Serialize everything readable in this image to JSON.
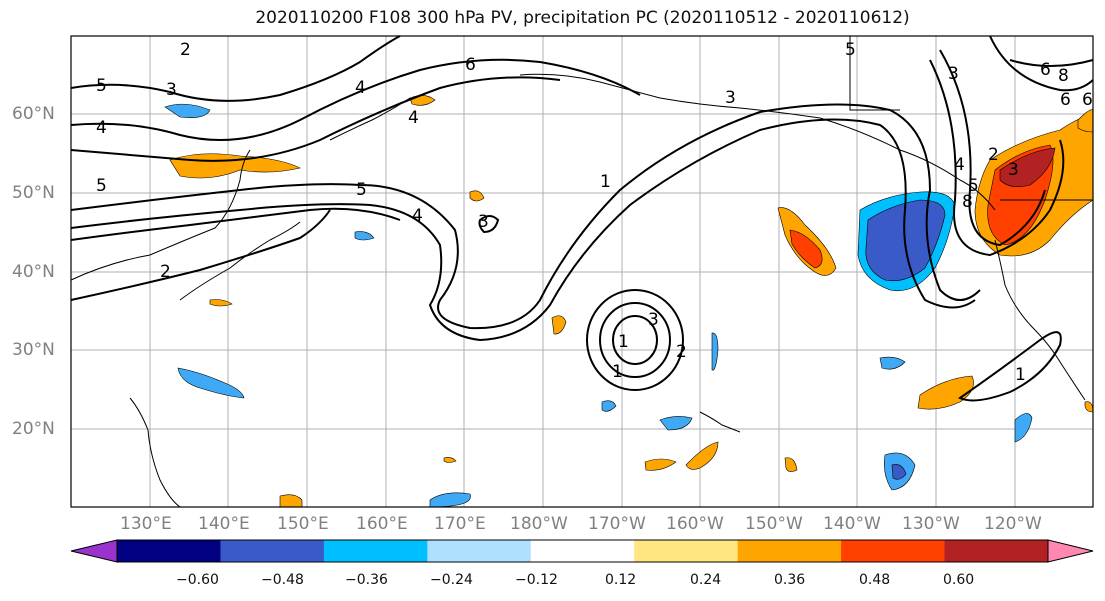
{
  "title": "2020110200 F108 300 hPa PV, precipitation PC (2020110512 - 2020110612)",
  "lat_labels": [
    "60°N",
    "50°N",
    "40°N",
    "30°N",
    "20°N"
  ],
  "lon_labels": [
    "130°E",
    "140°E",
    "150°E",
    "160°E",
    "170°E",
    "180°W",
    "170°W",
    "160°W",
    "150°W",
    "140°W",
    "130°W",
    "120°W"
  ],
  "contour_labels": [
    "2",
    "3",
    "4",
    "5",
    "6",
    "5",
    "4",
    "3",
    "2",
    "1",
    "3",
    "4",
    "5",
    "6",
    "1",
    "2",
    "3",
    "1",
    "3",
    "6",
    "8",
    "2",
    "4",
    "5",
    "5",
    "4",
    "3",
    "6",
    "8",
    "1"
  ],
  "colorbar": {
    "colors": [
      "#9933cc",
      "#000080",
      "#3a5bc7",
      "#00bfff",
      "#b0e0ff",
      "#ffffff",
      "#ffe680",
      "#ffa500",
      "#ff4000",
      "#b22222",
      "#ff88b0"
    ],
    "ticks": [
      "−0.60",
      "−0.48",
      "−0.36",
      "−0.24",
      "−0.12",
      "0.12",
      "0.24",
      "0.36",
      "0.48",
      "0.60"
    ]
  }
}
